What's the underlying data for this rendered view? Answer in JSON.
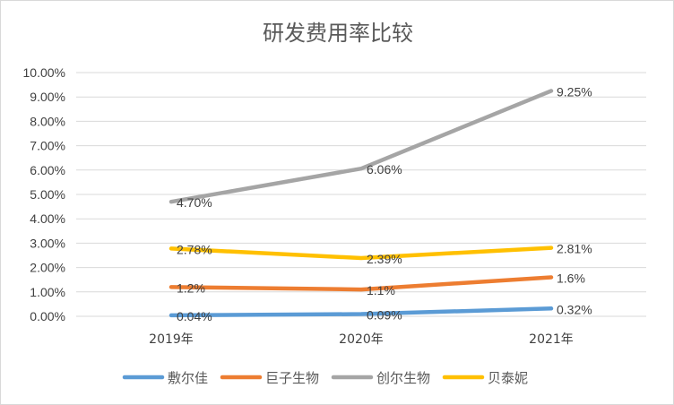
{
  "chart_data": {
    "type": "line",
    "title": "研发费用率比较",
    "xlabel": "",
    "ylabel": "",
    "categories": [
      "2019年",
      "2020年",
      "2021年"
    ],
    "ylim": [
      0,
      0.1
    ],
    "ytick_values": [
      0,
      0.01,
      0.02,
      0.03,
      0.04,
      0.05,
      0.06,
      0.07,
      0.08,
      0.09,
      0.1
    ],
    "ytick_labels": [
      "0.00%",
      "1.00%",
      "2.00%",
      "3.00%",
      "4.00%",
      "5.00%",
      "6.00%",
      "7.00%",
      "8.00%",
      "9.00%",
      "10.00%"
    ],
    "grid": true,
    "legend_position": "bottom",
    "series": [
      {
        "name": "敷尔佳",
        "color": "#5b9bd5",
        "values": [
          0.0004,
          0.0009,
          0.0032
        ],
        "labels": [
          "0.04%",
          "0.09%",
          "0.32%"
        ]
      },
      {
        "name": "巨子生物",
        "color": "#ed7d31",
        "values": [
          0.012,
          0.011,
          0.016
        ],
        "labels": [
          "1.2%",
          "1.1%",
          "1.6%"
        ]
      },
      {
        "name": "创尔生物",
        "color": "#a5a5a5",
        "values": [
          0.047,
          0.0606,
          0.0925
        ],
        "labels": [
          "4.70%",
          "6.06%",
          "9.25%"
        ]
      },
      {
        "name": "贝泰妮",
        "color": "#ffc000",
        "values": [
          0.0278,
          0.0239,
          0.0281
        ],
        "labels": [
          "2.78%",
          "2.39%",
          "2.81%"
        ]
      }
    ]
  }
}
